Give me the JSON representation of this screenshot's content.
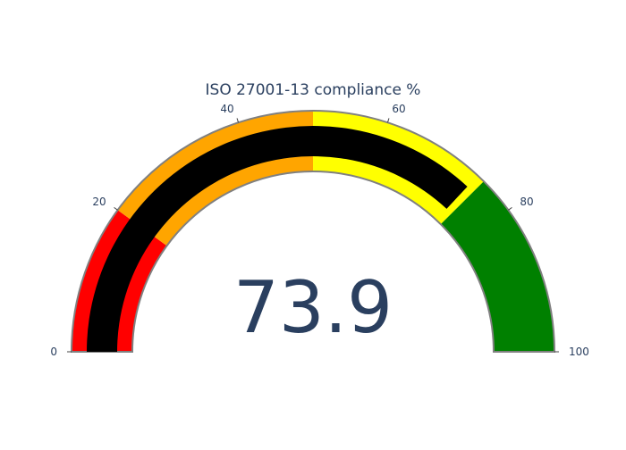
{
  "colors": {
    "background": "#ffffff",
    "text": "#2a3f5f",
    "bar": "#000000",
    "outline": "#808080",
    "tick": "#444444"
  },
  "chart_data": {
    "type": "gauge",
    "title": "ISO 27001-13 compliance %",
    "value": 73.9,
    "value_label": "73.9",
    "range": [
      0,
      100
    ],
    "ticks": [
      {
        "value": 0,
        "label": "0"
      },
      {
        "value": 20,
        "label": "20"
      },
      {
        "value": 40,
        "label": "40"
      },
      {
        "value": 60,
        "label": "60"
      },
      {
        "value": 80,
        "label": "80"
      },
      {
        "value": 100,
        "label": "100"
      }
    ],
    "bands": [
      {
        "from": 0,
        "to": 20,
        "color": "#ff0000"
      },
      {
        "from": 20,
        "to": 50,
        "color": "#ffa500"
      },
      {
        "from": 50,
        "to": 75,
        "color": "#ffff00"
      },
      {
        "from": 75,
        "to": 100,
        "color": "#008000"
      }
    ]
  }
}
